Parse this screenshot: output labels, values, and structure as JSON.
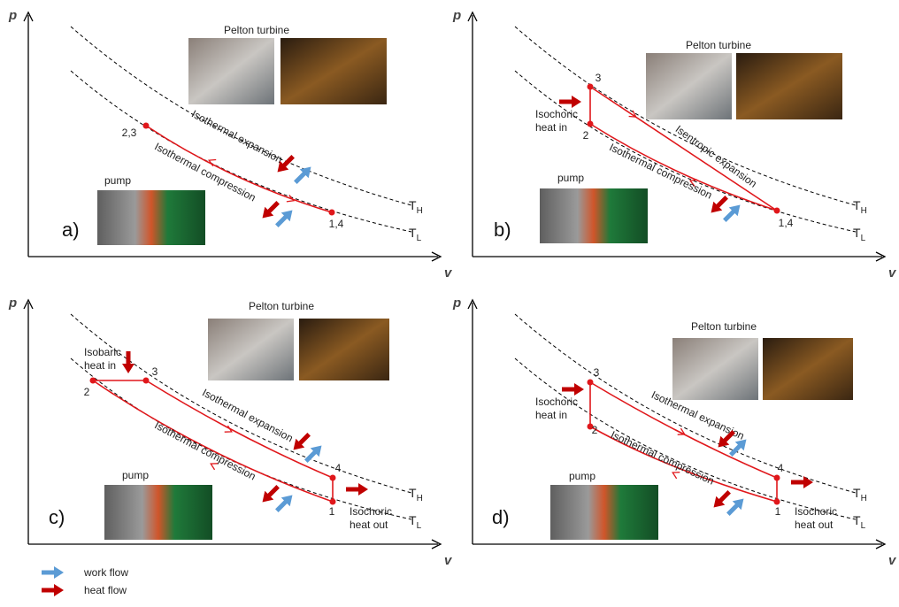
{
  "panels": [
    {
      "label": "a)",
      "axis_p": "p",
      "axis_v": "v",
      "isotherm_high": {
        "symbol": "T",
        "subscript": "H"
      },
      "isotherm_low": {
        "symbol": "T",
        "subscript": "L"
      },
      "turbine": "Pelton turbine",
      "pump": "pump",
      "points": [
        {
          "label": "2,3"
        },
        {
          "label": "1,4"
        }
      ],
      "processes": [
        {
          "label": "Isothermal expansion"
        },
        {
          "label": "Isothermal compression"
        }
      ],
      "heat_notes": []
    },
    {
      "label": "b)",
      "axis_p": "p",
      "axis_v": "v",
      "isotherm_high": {
        "symbol": "T",
        "subscript": "H"
      },
      "isotherm_low": {
        "symbol": "T",
        "subscript": "L"
      },
      "turbine": "Pelton turbine",
      "pump": "pump",
      "points": [
        {
          "label": "3"
        },
        {
          "label": "2"
        },
        {
          "label": "1,4"
        }
      ],
      "processes": [
        {
          "label": "Isentropic expansion"
        },
        {
          "label": "Isothermal compression"
        }
      ],
      "heat_notes": [
        {
          "lines": [
            "Isochoric",
            "heat in"
          ]
        }
      ]
    },
    {
      "label": "c)",
      "axis_p": "p",
      "axis_v": "v",
      "isotherm_high": {
        "symbol": "T",
        "subscript": "H"
      },
      "isotherm_low": {
        "symbol": "T",
        "subscript": "L"
      },
      "turbine": "Pelton turbine",
      "pump": "pump",
      "points": [
        {
          "label": "2"
        },
        {
          "label": "3"
        },
        {
          "label": "4"
        },
        {
          "label": "1"
        }
      ],
      "processes": [
        {
          "label": "Isothermal expansion"
        },
        {
          "label": "Isothermal compression"
        }
      ],
      "heat_notes": [
        {
          "lines": [
            "Isobaric",
            "heat in"
          ]
        },
        {
          "lines": [
            "Isochoric",
            "heat out"
          ]
        }
      ]
    },
    {
      "label": "d)",
      "axis_p": "p",
      "axis_v": "v",
      "isotherm_high": {
        "symbol": "T",
        "subscript": "H"
      },
      "isotherm_low": {
        "symbol": "T",
        "subscript": "L"
      },
      "turbine": "Pelton turbine",
      "pump": "pump",
      "points": [
        {
          "label": "3"
        },
        {
          "label": "2"
        },
        {
          "label": "4"
        },
        {
          "label": "1"
        }
      ],
      "processes": [
        {
          "label": "Isothermal expansion"
        },
        {
          "label": "Isothermal compression"
        }
      ],
      "heat_notes": [
        {
          "lines": [
            "Isochoric",
            "heat in"
          ]
        },
        {
          "lines": [
            "Isochoric",
            "heat out"
          ]
        }
      ]
    }
  ],
  "legend": {
    "items": [
      {
        "label": "work flow"
      },
      {
        "label": "heat flow"
      }
    ]
  }
}
